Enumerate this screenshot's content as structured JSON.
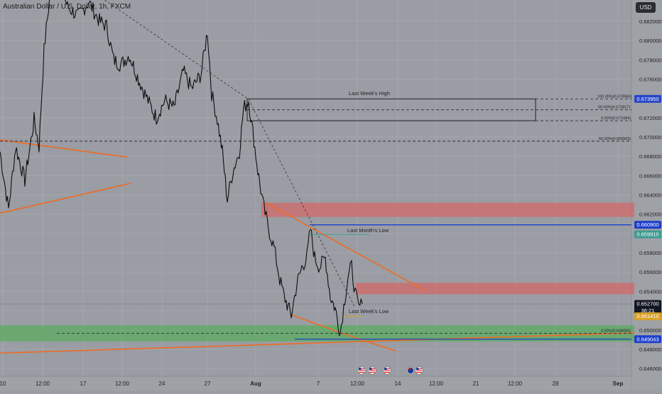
{
  "header": {
    "title": "Australian Dollar / U.S. Dollar",
    "interval": "1h",
    "exchange": "FXCM",
    "currency_button": "USD"
  },
  "chart_data": {
    "type": "candlestick",
    "title": "Australian Dollar / U.S. Dollar, 1h, FXCM",
    "ylim": [
      0.6452,
      0.6842
    ],
    "y_ticks": [
      0.682,
      0.68,
      0.678,
      0.676,
      0.674,
      0.672,
      0.67,
      0.668,
      0.666,
      0.664,
      0.662,
      0.66,
      0.658,
      0.656,
      0.654,
      0.652,
      0.65,
      0.648,
      0.646
    ],
    "y_tick_labels": [
      "0.682000",
      "0.680000",
      "0.678000",
      "0.676000",
      "0.674000",
      "0.672000",
      "0.670000",
      "0.668000",
      "0.666000",
      "0.664000",
      "0.662000",
      "0.660000",
      "0.658000",
      "0.656000",
      "0.654000",
      "0.652000",
      "0.650000",
      "0.648000",
      "0.646000"
    ],
    "x_ticks": [
      "10",
      "12:00",
      "17",
      "12:00",
      "24",
      "27",
      "Aug",
      "7",
      "12:00",
      "14",
      "12:00",
      "21",
      "12:00",
      "28",
      "Sep"
    ],
    "price_path": [
      [
        0,
        0.6685
      ],
      [
        12,
        0.6625
      ],
      [
        22,
        0.669
      ],
      [
        35,
        0.6655
      ],
      [
        48,
        0.6718
      ],
      [
        55,
        0.669
      ],
      [
        62,
        0.679
      ],
      [
        70,
        0.6845
      ],
      [
        86,
        0.6855
      ],
      [
        95,
        0.6835
      ],
      [
        110,
        0.6825
      ],
      [
        125,
        0.684
      ],
      [
        140,
        0.682
      ],
      [
        150,
        0.6815
      ],
      [
        160,
        0.678
      ],
      [
        170,
        0.6775
      ],
      [
        182,
        0.6785
      ],
      [
        195,
        0.676
      ],
      [
        210,
        0.6735
      ],
      [
        220,
        0.672
      ],
      [
        232,
        0.6738
      ],
      [
        245,
        0.673
      ],
      [
        258,
        0.6768
      ],
      [
        270,
        0.675
      ],
      [
        283,
        0.6765
      ],
      [
        292,
        0.681
      ],
      [
        298,
        0.6745
      ],
      [
        306,
        0.6718
      ],
      [
        313,
        0.6685
      ],
      [
        320,
        0.6635
      ],
      [
        328,
        0.6665
      ],
      [
        337,
        0.6685
      ],
      [
        343,
        0.673
      ],
      [
        350,
        0.6738
      ],
      [
        356,
        0.6705
      ],
      [
        363,
        0.6665
      ],
      [
        370,
        0.6632
      ],
      [
        378,
        0.6605
      ],
      [
        386,
        0.6585
      ],
      [
        394,
        0.6552
      ],
      [
        400,
        0.6535
      ],
      [
        410,
        0.6515
      ],
      [
        418,
        0.6548
      ],
      [
        425,
        0.6565
      ],
      [
        432,
        0.6575
      ],
      [
        437,
        0.6605
      ],
      [
        443,
        0.6575
      ],
      [
        450,
        0.6565
      ],
      [
        458,
        0.6575
      ],
      [
        465,
        0.6535
      ],
      [
        472,
        0.6522
      ],
      [
        479,
        0.6497
      ],
      [
        484,
        0.6525
      ],
      [
        490,
        0.6555
      ],
      [
        495,
        0.6566
      ],
      [
        500,
        0.6538
      ],
      [
        505,
        0.6523
      ],
      [
        510,
        0.6527
      ]
    ],
    "last_price": "0.652700",
    "countdown": "36:21",
    "price_tags": [
      {
        "label": "0.673950",
        "price": 0.67395,
        "color": "#2745c9"
      },
      {
        "label": "0.660900",
        "price": 0.6609,
        "color": "#1e3fcc"
      },
      {
        "label": "0.659910",
        "price": 0.65991,
        "color": "#3d9c93"
      },
      {
        "label": "0.652700",
        "price": 0.6527,
        "color": "#131722"
      },
      {
        "label": "0.651410",
        "price": 0.65141,
        "color": "#d8a226"
      },
      {
        "label": "0.649043",
        "price": 0.649043,
        "color": "#1e3fcc"
      }
    ],
    "annotations": [
      {
        "text": "Last Week's High",
        "price": 0.6742
      },
      {
        "text": "Last Month's Low",
        "price": 0.66
      },
      {
        "text": "Last Week's Low",
        "price": 0.6516
      }
    ],
    "fib_levels": [
      {
        "label": "100.00%(0.673950)",
        "price": 0.67395
      },
      {
        "label": "50.00%(0.672817)",
        "price": 0.672817
      },
      {
        "label": "0.00%(0.671684)",
        "price": 0.671684
      },
      {
        "label": "50.00%(0.669565)",
        "price": 0.669565
      },
      {
        "label": "0.00%(0.649650)",
        "price": 0.64965
      }
    ],
    "zones": [
      {
        "kind": "supply",
        "top": 0.6632,
        "bottom": 0.6617,
        "color": "#e05b5b"
      },
      {
        "kind": "supply",
        "top": 0.6549,
        "bottom": 0.6537,
        "color": "#e05b5b"
      },
      {
        "kind": "demand",
        "top": 0.6505,
        "bottom": 0.6488,
        "color": "#4caf50"
      }
    ],
    "grid": true
  }
}
